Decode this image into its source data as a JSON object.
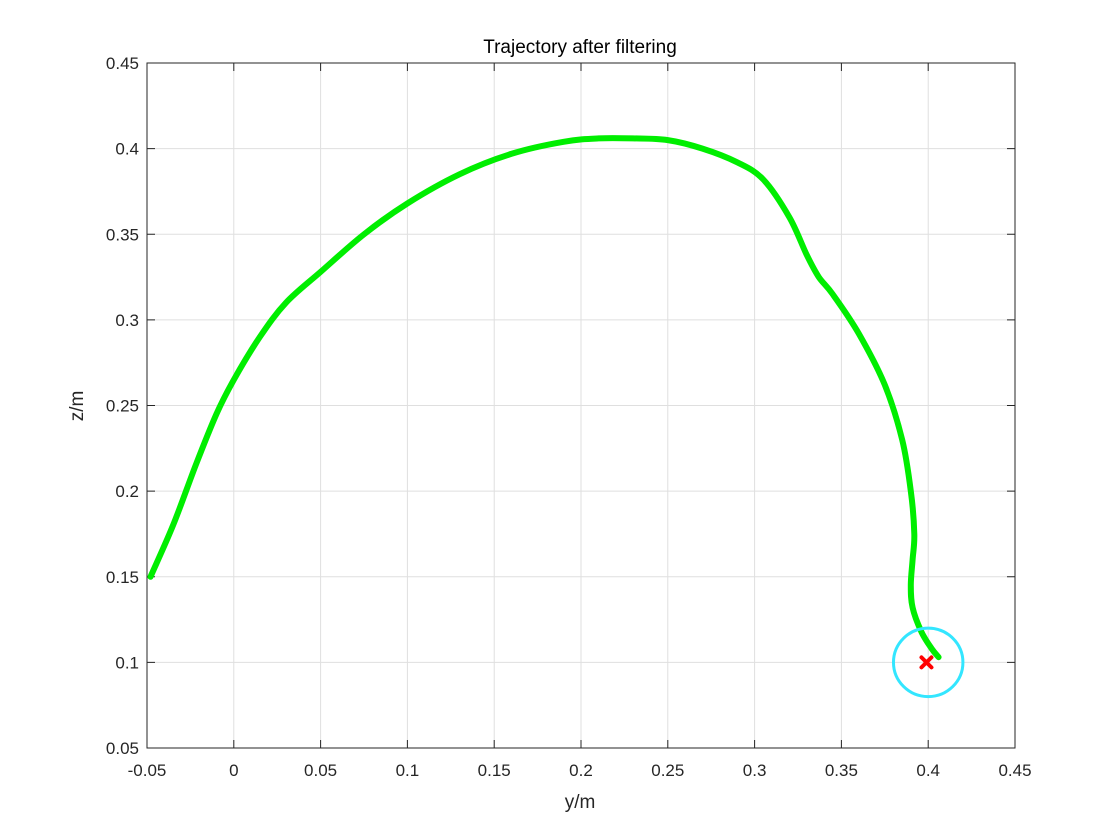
{
  "chart_data": {
    "type": "line",
    "title": "Trajectory after filtering",
    "xlabel": "y/m",
    "ylabel": "z/m",
    "xlim": [
      -0.05,
      0.45
    ],
    "ylim": [
      0.05,
      0.45
    ],
    "xticks": [
      -0.05,
      0,
      0.05,
      0.1,
      0.15,
      0.2,
      0.25,
      0.3,
      0.35,
      0.4,
      0.45
    ],
    "xtick_labels": [
      "-0.05",
      "0",
      "0.05",
      "0.1",
      "0.15",
      "0.2",
      "0.25",
      "0.3",
      "0.35",
      "0.4",
      "0.45"
    ],
    "yticks": [
      0.05,
      0.1,
      0.15,
      0.2,
      0.25,
      0.3,
      0.35,
      0.4,
      0.45
    ],
    "ytick_labels": [
      "0.05",
      "0.1",
      "0.15",
      "0.2",
      "0.25",
      "0.3",
      "0.35",
      "0.4",
      "0.45"
    ],
    "grid": true,
    "series": [
      {
        "color": "#00ee00",
        "x": [
          -0.048,
          -0.035,
          -0.022,
          -0.01,
          0.0,
          0.015,
          0.03,
          0.05,
          0.075,
          0.1,
          0.13,
          0.16,
          0.19,
          0.21,
          0.23,
          0.25,
          0.27,
          0.29,
          0.305,
          0.32,
          0.33,
          0.337,
          0.345,
          0.36,
          0.375,
          0.385,
          0.39,
          0.392,
          0.391,
          0.39,
          0.391,
          0.396,
          0.402,
          0.406
        ],
        "y": [
          0.15,
          0.18,
          0.215,
          0.245,
          0.265,
          0.29,
          0.31,
          0.328,
          0.35,
          0.368,
          0.385,
          0.397,
          0.404,
          0.406,
          0.406,
          0.405,
          0.4,
          0.392,
          0.382,
          0.36,
          0.338,
          0.325,
          0.315,
          0.292,
          0.262,
          0.23,
          0.2,
          0.175,
          0.16,
          0.145,
          0.132,
          0.118,
          0.108,
          0.103
        ]
      }
    ],
    "markers": [
      {
        "shape": "x",
        "color": "#ff0000",
        "x": 0.399,
        "y": 0.1
      }
    ],
    "circles": [
      {
        "color": "#33e6ff",
        "cx": 0.4,
        "cy": 0.1,
        "r": 0.02
      }
    ]
  }
}
